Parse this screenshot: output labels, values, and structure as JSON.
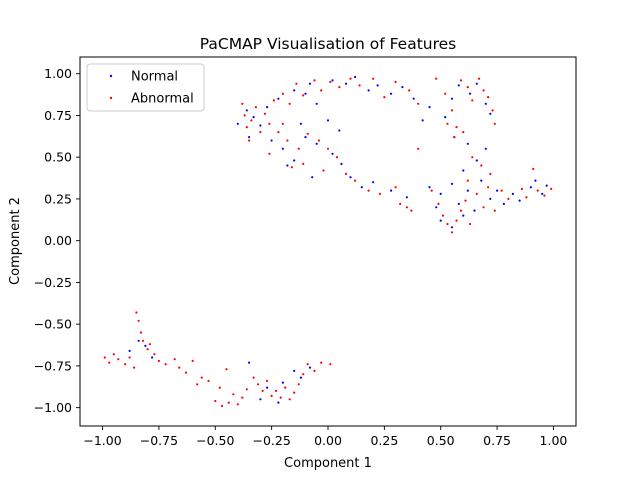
{
  "chart_data": {
    "type": "scatter",
    "title": "PaCMAP Visualisation of Features",
    "xlabel": "Component 1",
    "ylabel": "Component 2",
    "xlim": [
      -1.1,
      1.1
    ],
    "ylim": [
      -1.11,
      1.1
    ],
    "xticks": [
      -1.0,
      -0.75,
      -0.5,
      -0.25,
      0.0,
      0.25,
      0.5,
      0.75,
      1.0
    ],
    "xtick_labels": [
      "−1.00",
      "−0.75",
      "−0.50",
      "−0.25",
      "0.00",
      "0.25",
      "0.50",
      "0.75",
      "1.00"
    ],
    "yticks": [
      -1.0,
      -0.75,
      -0.5,
      -0.25,
      0.0,
      0.25,
      0.5,
      0.75,
      1.0
    ],
    "ytick_labels": [
      "−1.00",
      "−0.75",
      "−0.50",
      "−0.25",
      "0.00",
      "0.25",
      "0.50",
      "0.75",
      "1.00"
    ],
    "legend_position": "top-left",
    "grid": false,
    "series": [
      {
        "name": "Normal",
        "color": "#0000ff",
        "points": [
          [
            -0.36,
            0.78
          ],
          [
            -0.33,
            0.74
          ],
          [
            -0.3,
            0.69
          ],
          [
            -0.27,
            0.8
          ],
          [
            -0.22,
            0.85
          ],
          [
            -0.15,
            0.9
          ],
          [
            -0.1,
            0.88
          ],
          [
            -0.08,
            0.94
          ],
          [
            -0.05,
            0.82
          ],
          [
            0.02,
            0.96
          ],
          [
            0.08,
            0.94
          ],
          [
            0.12,
            0.98
          ],
          [
            0.18,
            0.9
          ],
          [
            0.22,
            0.93
          ],
          [
            0.28,
            0.88
          ],
          [
            0.33,
            0.92
          ],
          [
            0.38,
            0.85
          ],
          [
            0.45,
            0.8
          ],
          [
            0.52,
            0.74
          ],
          [
            0.55,
            0.85
          ],
          [
            0.58,
            0.93
          ],
          [
            0.63,
            0.88
          ],
          [
            0.66,
            0.94
          ],
          [
            0.7,
            0.82
          ],
          [
            0.72,
            0.76
          ],
          [
            -0.25,
            0.6
          ],
          [
            -0.2,
            0.55
          ],
          [
            -0.15,
            0.48
          ],
          [
            -0.1,
            0.62
          ],
          [
            -0.05,
            0.58
          ],
          [
            0.02,
            0.52
          ],
          [
            0.06,
            0.46
          ],
          [
            -0.18,
            0.45
          ],
          [
            -0.07,
            0.38
          ],
          [
            0.1,
            0.38
          ],
          [
            0.15,
            0.32
          ],
          [
            0.2,
            0.35
          ],
          [
            0.28,
            0.3
          ],
          [
            0.35,
            0.26
          ],
          [
            0.45,
            0.32
          ],
          [
            0.5,
            0.28
          ],
          [
            0.55,
            0.34
          ],
          [
            0.58,
            0.22
          ],
          [
            0.62,
            0.3
          ],
          [
            0.65,
            0.18
          ],
          [
            0.68,
            0.36
          ],
          [
            0.72,
            0.25
          ],
          [
            0.75,
            0.3
          ],
          [
            0.78,
            0.22
          ],
          [
            0.82,
            0.28
          ],
          [
            0.85,
            0.24
          ],
          [
            0.9,
            0.32
          ],
          [
            0.92,
            0.36
          ],
          [
            0.95,
            0.28
          ],
          [
            0.97,
            0.33
          ],
          [
            0.6,
            0.42
          ],
          [
            0.66,
            0.48
          ],
          [
            0.7,
            0.55
          ],
          [
            0.5,
            0.12
          ],
          [
            0.55,
            0.08
          ],
          [
            0.6,
            0.15
          ],
          [
            0.48,
            0.2
          ],
          [
            0.56,
            0.62
          ],
          [
            0.62,
            0.58
          ],
          [
            -0.4,
            0.7
          ],
          [
            -0.35,
            0.62
          ],
          [
            0.0,
            0.72
          ],
          [
            0.05,
            0.66
          ],
          [
            -0.12,
            0.7
          ],
          [
            0.42,
            0.72
          ],
          [
            -0.88,
            -0.66
          ],
          [
            -0.84,
            -0.6
          ],
          [
            -0.81,
            -0.63
          ],
          [
            -0.78,
            -0.7
          ],
          [
            -0.35,
            -0.73
          ],
          [
            -0.2,
            -0.85
          ],
          [
            -0.15,
            -0.78
          ],
          [
            -0.12,
            -0.82
          ],
          [
            -0.27,
            -0.88
          ],
          [
            -0.08,
            -0.76
          ],
          [
            -0.3,
            -0.95
          ],
          [
            -0.22,
            -0.97
          ]
        ]
      },
      {
        "name": "Abnormal",
        "color": "#ff0000",
        "points": [
          [
            -0.38,
            0.82
          ],
          [
            -0.37,
            0.75
          ],
          [
            -0.36,
            0.68
          ],
          [
            -0.35,
            0.6
          ],
          [
            -0.34,
            0.72
          ],
          [
            -0.32,
            0.8
          ],
          [
            -0.3,
            0.65
          ],
          [
            -0.28,
            0.76
          ],
          [
            -0.26,
            0.7
          ],
          [
            -0.24,
            0.84
          ],
          [
            -0.2,
            0.88
          ],
          [
            -0.17,
            0.82
          ],
          [
            -0.14,
            0.94
          ],
          [
            -0.11,
            0.87
          ],
          [
            -0.06,
            0.96
          ],
          [
            -0.03,
            0.9
          ],
          [
            0.01,
            0.95
          ],
          [
            0.05,
            0.92
          ],
          [
            0.1,
            0.97
          ],
          [
            0.14,
            0.93
          ],
          [
            0.2,
            0.97
          ],
          [
            0.25,
            0.86
          ],
          [
            0.3,
            0.95
          ],
          [
            0.36,
            0.9
          ],
          [
            0.4,
            0.82
          ],
          [
            0.48,
            0.97
          ],
          [
            0.52,
            0.88
          ],
          [
            0.55,
            0.78
          ],
          [
            0.57,
            0.68
          ],
          [
            0.59,
            0.96
          ],
          [
            0.62,
            0.92
          ],
          [
            0.64,
            0.84
          ],
          [
            0.67,
            0.97
          ],
          [
            0.69,
            0.9
          ],
          [
            0.71,
            0.86
          ],
          [
            0.73,
            0.78
          ],
          [
            0.74,
            0.7
          ],
          [
            0.53,
            0.7
          ],
          [
            0.56,
            0.62
          ],
          [
            0.6,
            0.65
          ],
          [
            -0.22,
            0.65
          ],
          [
            -0.18,
            0.6
          ],
          [
            -0.13,
            0.55
          ],
          [
            -0.09,
            0.64
          ],
          [
            -0.04,
            0.6
          ],
          [
            0.0,
            0.55
          ],
          [
            0.04,
            0.5
          ],
          [
            -0.16,
            0.44
          ],
          [
            -0.11,
            0.46
          ],
          [
            -0.02,
            0.42
          ],
          [
            0.08,
            0.4
          ],
          [
            0.12,
            0.36
          ],
          [
            0.18,
            0.3
          ],
          [
            0.23,
            0.28
          ],
          [
            0.3,
            0.32
          ],
          [
            0.32,
            0.22
          ],
          [
            0.35,
            0.2
          ],
          [
            0.37,
            0.18
          ],
          [
            0.4,
            0.55
          ],
          [
            0.46,
            0.3
          ],
          [
            0.49,
            0.22
          ],
          [
            0.51,
            0.15
          ],
          [
            0.53,
            0.1
          ],
          [
            0.55,
            0.05
          ],
          [
            0.57,
            0.12
          ],
          [
            0.59,
            0.18
          ],
          [
            0.61,
            0.24
          ],
          [
            0.63,
            0.1
          ],
          [
            0.66,
            0.28
          ],
          [
            0.69,
            0.2
          ],
          [
            0.71,
            0.32
          ],
          [
            0.74,
            0.18
          ],
          [
            0.77,
            0.3
          ],
          [
            0.8,
            0.25
          ],
          [
            0.86,
            0.31
          ],
          [
            0.88,
            0.26
          ],
          [
            0.93,
            0.3
          ],
          [
            0.96,
            0.27
          ],
          [
            0.99,
            0.31
          ],
          [
            0.91,
            0.43
          ],
          [
            0.62,
            0.36
          ],
          [
            0.64,
            0.5
          ],
          [
            0.68,
            0.45
          ],
          [
            0.72,
            0.4
          ],
          [
            -0.26,
            0.52
          ],
          [
            -0.2,
            0.7
          ],
          [
            -0.99,
            -0.7
          ],
          [
            -0.97,
            -0.73
          ],
          [
            -0.95,
            -0.68
          ],
          [
            -0.93,
            -0.71
          ],
          [
            -0.9,
            -0.74
          ],
          [
            -0.88,
            -0.7
          ],
          [
            -0.86,
            -0.76
          ],
          [
            -0.85,
            -0.43
          ],
          [
            -0.84,
            -0.48
          ],
          [
            -0.83,
            -0.55
          ],
          [
            -0.82,
            -0.6
          ],
          [
            -0.8,
            -0.65
          ],
          [
            -0.79,
            -0.62
          ],
          [
            -0.77,
            -0.68
          ],
          [
            -0.75,
            -0.72
          ],
          [
            -0.72,
            -0.74
          ],
          [
            -0.68,
            -0.71
          ],
          [
            -0.66,
            -0.76
          ],
          [
            -0.63,
            -0.79
          ],
          [
            -0.6,
            -0.72
          ],
          [
            -0.56,
            -0.82
          ],
          [
            -0.53,
            -0.84
          ],
          [
            -0.5,
            -0.96
          ],
          [
            -0.47,
            -0.99
          ],
          [
            -0.44,
            -0.97
          ],
          [
            -0.42,
            -0.92
          ],
          [
            -0.4,
            -0.98
          ],
          [
            -0.38,
            -0.94
          ],
          [
            -0.36,
            -0.89
          ],
          [
            -0.33,
            -0.82
          ],
          [
            -0.31,
            -0.86
          ],
          [
            -0.29,
            -0.9
          ],
          [
            -0.27,
            -0.84
          ],
          [
            -0.25,
            -0.93
          ],
          [
            -0.23,
            -0.9
          ],
          [
            -0.21,
            -0.94
          ],
          [
            -0.19,
            -0.88
          ],
          [
            -0.17,
            -0.95
          ],
          [
            -0.15,
            -0.91
          ],
          [
            -0.13,
            -0.86
          ],
          [
            -0.11,
            -0.8
          ],
          [
            -0.09,
            -0.74
          ],
          [
            -0.06,
            -0.78
          ],
          [
            -0.03,
            -0.73
          ],
          [
            0.01,
            -0.74
          ],
          [
            -0.45,
            -0.77
          ],
          [
            -0.48,
            -0.88
          ],
          [
            -0.58,
            -0.86
          ]
        ]
      }
    ]
  }
}
